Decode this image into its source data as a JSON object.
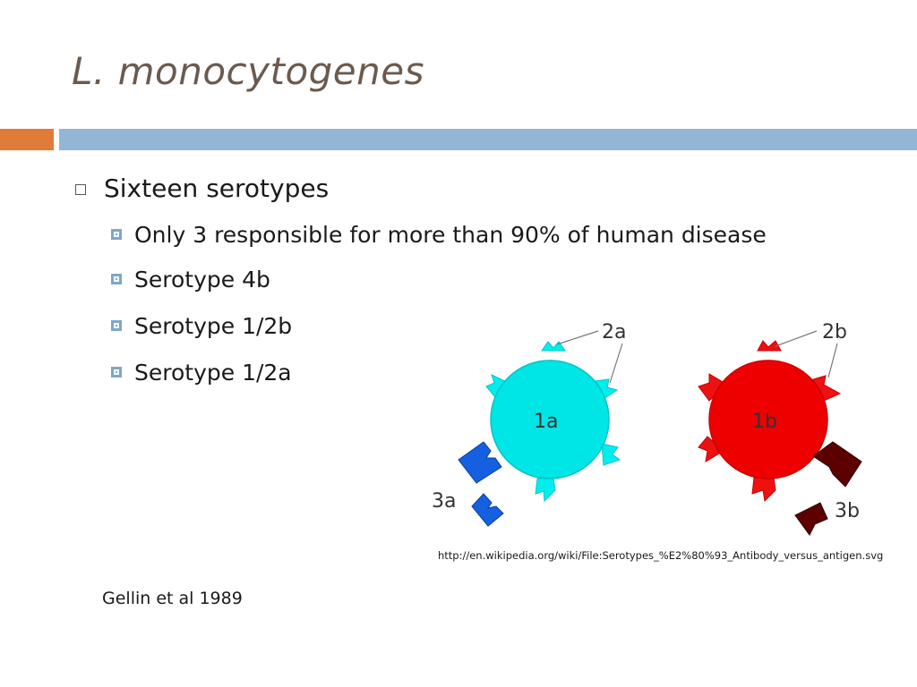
{
  "slide": {
    "title": "L. monocytogenes",
    "bullets": {
      "level1": "Sixteen serotypes",
      "level2": [
        "Only 3 responsible for more than 90% of human disease",
        "Serotype 4b",
        "Serotype 1/2b",
        "Serotype 1/2a"
      ]
    },
    "diagram": {
      "labels": {
        "c1a": "1a",
        "c1b": "1b",
        "l2a": "2a",
        "l2b": "2b",
        "l3a": "3a",
        "l3b": "3b"
      },
      "colors": {
        "cyan_cell": "#00e5e5",
        "cyan_antigen": "#00eeee",
        "red_cell": "#ee0000",
        "red_antigen": "#ee1111",
        "blue_antigen": "#1560e0",
        "darkred_antigen": "#5c0000"
      }
    },
    "source": "http://en.wikipedia.org/wiki/File:Serotypes_%E2%80%93_Antibody_versus_antigen.svg",
    "citation": "Gellin et al 1989",
    "colors": {
      "title": "#6b5a4e",
      "accent_orange": "#e07b39",
      "accent_blue": "#93b6d4"
    }
  }
}
